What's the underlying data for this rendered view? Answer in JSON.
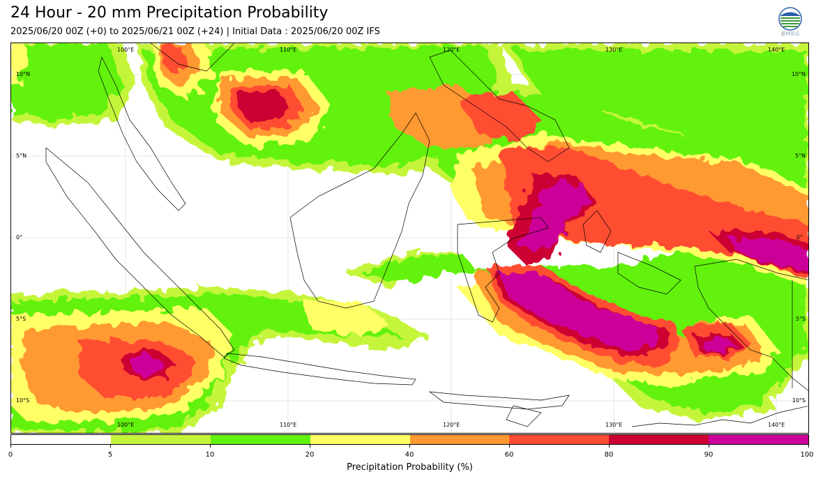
{
  "title": "24 Hour - 20 mm Precipitation Probability",
  "subtitle": "2025/06/20 00Z (+0) to 2025/06/21 00Z (+24) | Initial Data : 2025/06/20 00Z IFS",
  "logo": {
    "icon": "bmkg-logo",
    "text": "BMKG"
  },
  "map": {
    "lon_labels": [
      "100°E",
      "110°E",
      "120°E",
      "130°E",
      "140°E"
    ],
    "lat_labels": [
      "10°N",
      "5°N",
      "0°",
      "5°S",
      "10°S"
    ]
  },
  "colorbar": {
    "label": "Precipitation Probability (%)",
    "ticks": [
      "0",
      "5",
      "10",
      "20",
      "40",
      "60",
      "80",
      "90",
      "100"
    ],
    "colors": [
      "#ffffff",
      "#c5f53a",
      "#62f20f",
      "#ffff66",
      "#ff9933",
      "#ff4d33",
      "#cc0033",
      "#cc0099"
    ]
  }
}
